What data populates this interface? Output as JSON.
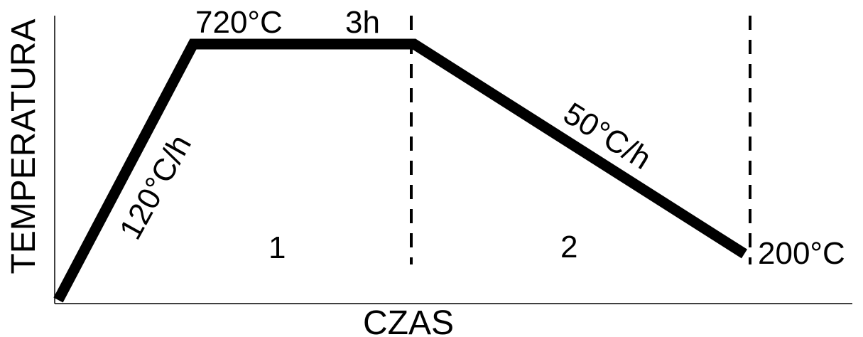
{
  "diagram": {
    "axes": {
      "y_title": "TEMPERATURA",
      "x_title": "CZAS"
    },
    "temperatures": {
      "peak": "720°C",
      "final": "200°C"
    },
    "hold_time": "3h",
    "rates": {
      "heating": "120°C/h",
      "cooling": "50°C/h"
    },
    "stages": [
      "1",
      "2"
    ],
    "colors": {
      "line": "#000000",
      "background": "#ffffff"
    }
  }
}
